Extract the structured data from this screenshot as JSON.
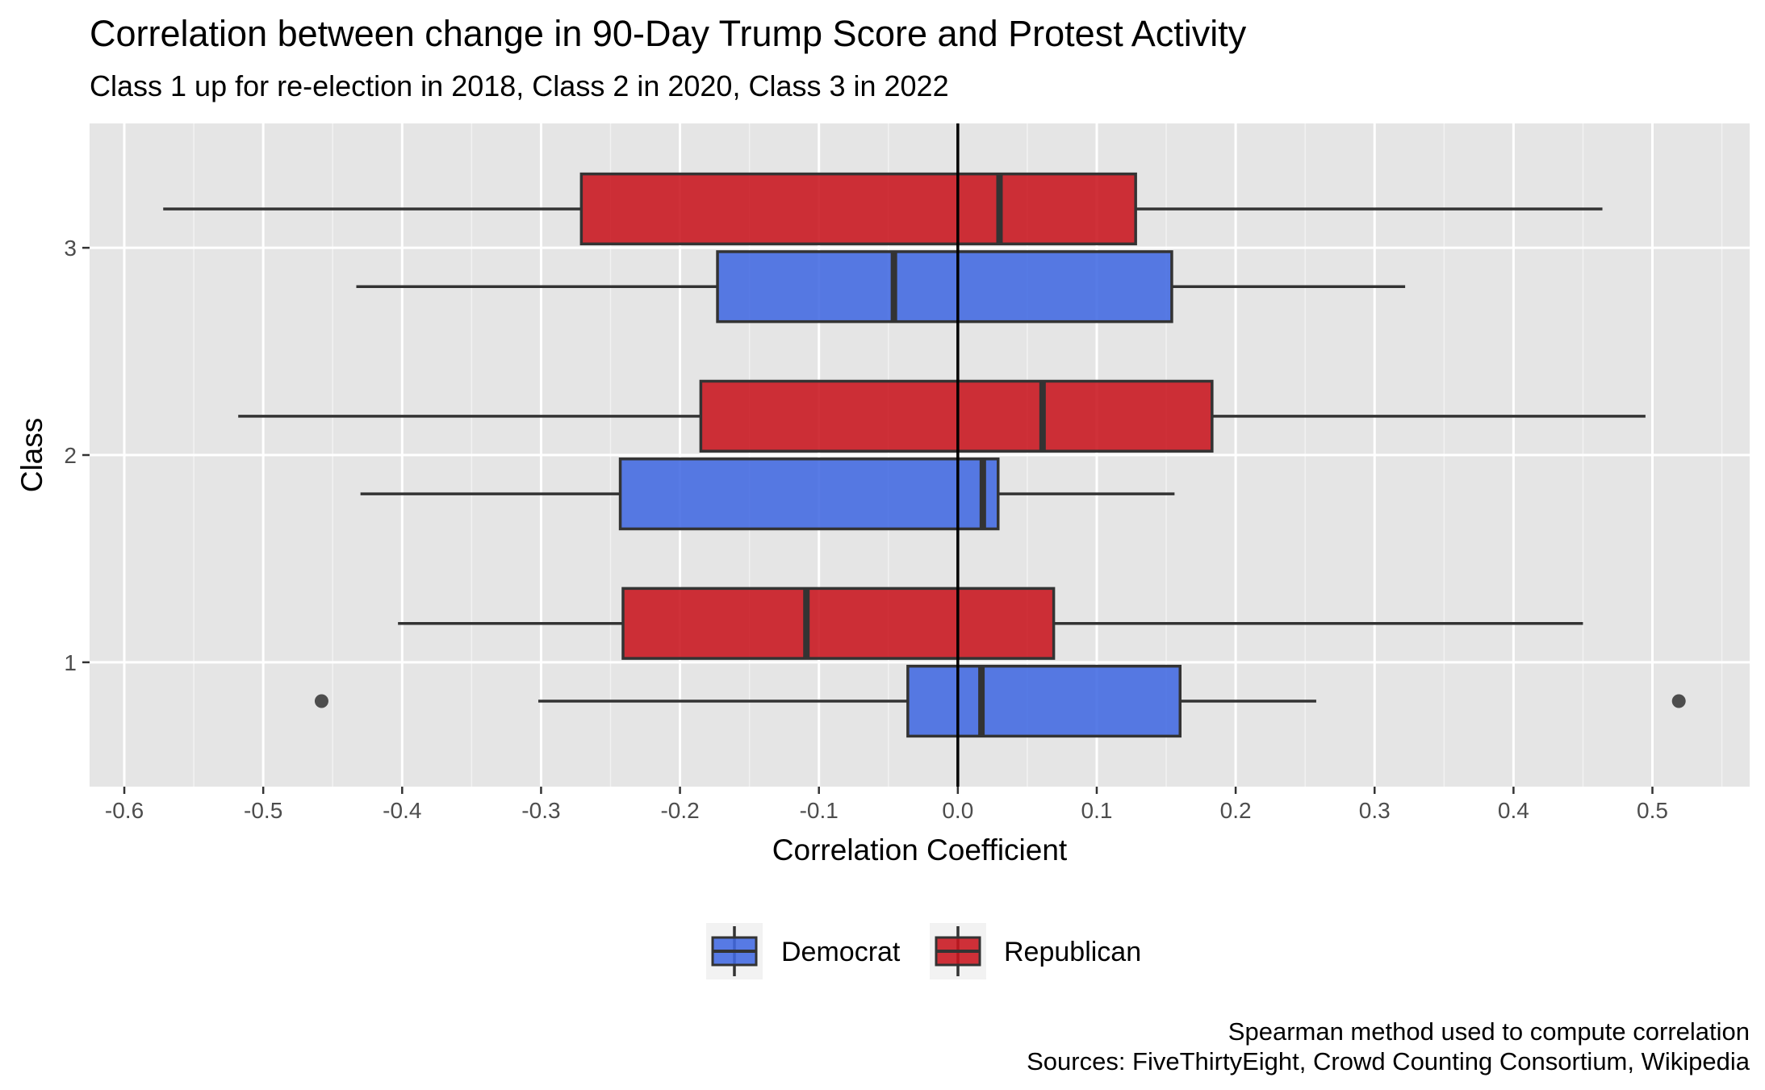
{
  "chart_data": {
    "type": "boxplot",
    "orientation": "horizontal",
    "title": "Correlation between change in 90-Day Trump Score and Protest Activity",
    "subtitle": "Class 1 up for re-election in 2018, Class 2 in 2020, Class 3 in 2022",
    "xlabel": "Correlation Coefficient",
    "ylabel": "Class",
    "xlim": [
      -0.625,
      0.57
    ],
    "x_ticks": [
      -0.6,
      -0.5,
      -0.4,
      -0.3,
      -0.2,
      -0.1,
      0.0,
      0.1,
      0.2,
      0.3,
      0.4,
      0.5
    ],
    "x_tick_labels": [
      "-0.6",
      "-0.5",
      "-0.4",
      "-0.3",
      "-0.2",
      "-0.1",
      "0.0",
      "0.1",
      "0.2",
      "0.3",
      "0.4",
      "0.5"
    ],
    "categories": [
      "1",
      "2",
      "3"
    ],
    "reference_line_x": 0,
    "grid": true,
    "legend_position": "bottom",
    "series": [
      {
        "name": "Democrat",
        "color": "#4169E1",
        "boxes": [
          {
            "category": "1",
            "whisker_low": -0.302,
            "q1": -0.036,
            "median": 0.017,
            "q3": 0.16,
            "whisker_high": 0.258,
            "outliers": [
              -0.458,
              0.519
            ]
          },
          {
            "category": "2",
            "whisker_low": -0.43,
            "q1": -0.243,
            "median": 0.018,
            "q3": 0.029,
            "whisker_high": 0.156,
            "outliers": []
          },
          {
            "category": "3",
            "whisker_low": -0.433,
            "q1": -0.173,
            "median": -0.046,
            "q3": 0.154,
            "whisker_high": 0.322,
            "outliers": []
          }
        ]
      },
      {
        "name": "Republican",
        "color": "#C8141E",
        "boxes": [
          {
            "category": "1",
            "whisker_low": -0.403,
            "q1": -0.241,
            "median": -0.109,
            "q3": 0.069,
            "whisker_high": 0.45,
            "outliers": []
          },
          {
            "category": "2",
            "whisker_low": -0.518,
            "q1": -0.185,
            "median": 0.061,
            "q3": 0.183,
            "whisker_high": 0.495,
            "outliers": []
          },
          {
            "category": "3",
            "whisker_low": -0.572,
            "q1": -0.271,
            "median": 0.03,
            "q3": 0.128,
            "whisker_high": 0.464,
            "outliers": []
          }
        ]
      }
    ]
  },
  "caption_lines": [
    "Spearman method used to compute correlation",
    "Sources: FiveThirtyEight, Crowd Counting Consortium, Wikipedia"
  ]
}
